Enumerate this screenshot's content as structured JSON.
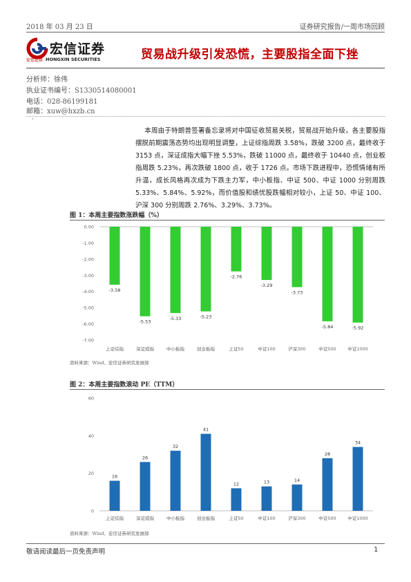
{
  "header": {
    "date": "2018 年 03 月 23 日",
    "report_type": "证券研究报告/一周市场回顾",
    "logo_main": "宏信证券",
    "logo_sub_cn": "宏信证券",
    "logo_sub_en": "HONGXIN SECURITIES"
  },
  "title": "贸易战升级引发恐慌，主要股指全面下挫",
  "analyst": {
    "name_line": "分析师：徐伟",
    "cert_line": "执业证书编号：S1330514080001",
    "phone_line": "电话：028-86199181",
    "email_line": "邮箱：xuw@hxzb.cn"
  },
  "bullet": "·",
  "summary": "本周由于特朗普签署备忘录将对中国征收贸易关税，贸易战开始升级，各主要股指摆脱前期震荡态势均出现明显调整，上证综指周跌 3.58%，跌破 3200 点，最终收于 3153 点，深证成指大幅下挫 5.53%，跌破 11000 点，最终收于 10440 点，创业板指周跌 5.23%，再次跌破 1800 点，收于 1726 点。市场下跌进程中，恐慌情绪有所升温，成长风格再次成为下跌主力军，中小板指、中证 500、中证 1000 分别周跌 5.33%、5.84%、5.92%，而价值股和绩优股跌幅相对较小，上证 50、中证 100、沪深 300 分别周跌 2.76%、3.29%、3.73%。",
  "figure1": {
    "title": "图 1：本周主要指数涨跌幅（%）",
    "source": "资料来源：Wind、宏信证券研究发展部"
  },
  "figure2": {
    "title": "图 2：本周主要指数滚动 PE（TTM）",
    "source": "资料来源：Wind、宏信证券研究发展部"
  },
  "chart_data": [
    {
      "type": "bar",
      "categories": [
        "上证综指",
        "深证成指",
        "中小板指",
        "创业板指",
        "上证50",
        "中证100",
        "沪深300",
        "中证500",
        "中证1000"
      ],
      "values": [
        -3.58,
        -5.53,
        -5.33,
        -5.23,
        -2.76,
        -3.29,
        -3.73,
        -5.84,
        -5.92
      ],
      "data_labels": [
        "-3.58",
        "-5.53",
        "-5.33",
        "-5.23",
        "-2.76",
        "-3.29",
        "-3.73",
        "-5.84",
        "-5.92"
      ],
      "yticks": [
        "0.00",
        "-1.00",
        "-2.00",
        "-3.00",
        "-4.00",
        "-5.00",
        "-6.00",
        "-7.00"
      ],
      "ylim": [
        -7,
        0
      ],
      "color": "#33cc33",
      "grid": false,
      "legend": false
    },
    {
      "type": "bar",
      "categories": [
        "上证综指",
        "深证成指",
        "中小板指",
        "创业板指",
        "上证50",
        "中证100",
        "沪深300",
        "中证500",
        "中证1000"
      ],
      "values": [
        16,
        26,
        32,
        41,
        12,
        13,
        14,
        28,
        34
      ],
      "data_labels": [
        "16",
        "26",
        "32",
        "41",
        "12",
        "13",
        "14",
        "28",
        "34"
      ],
      "yticks": [
        "0",
        "20",
        "40",
        "60"
      ],
      "ylim": [
        0,
        60
      ],
      "color": "#1f6db5",
      "grid": false,
      "legend": false
    }
  ],
  "footer": {
    "disclaimer": "敬请阅读最后一页免责声明",
    "page_number": "1"
  }
}
